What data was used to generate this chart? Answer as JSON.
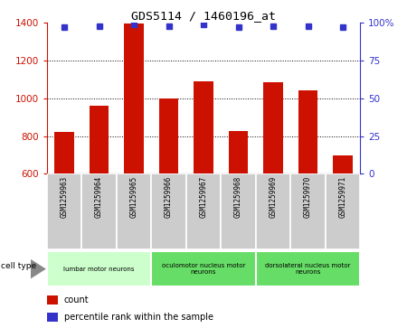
{
  "title": "GDS5114 / 1460196_at",
  "samples": [
    "GSM1259963",
    "GSM1259964",
    "GSM1259965",
    "GSM1259966",
    "GSM1259967",
    "GSM1259968",
    "GSM1259969",
    "GSM1259970",
    "GSM1259971"
  ],
  "bar_values": [
    820,
    960,
    1395,
    1000,
    1090,
    825,
    1085,
    1045,
    700
  ],
  "percentile_values": [
    97,
    98,
    99,
    98,
    99,
    97,
    98,
    98,
    97
  ],
  "bar_color": "#cc1100",
  "dot_color": "#3333cc",
  "ylim_left": [
    600,
    1400
  ],
  "ylim_right": [
    0,
    100
  ],
  "yticks_left": [
    600,
    800,
    1000,
    1200,
    1400
  ],
  "yticks_right": [
    0,
    25,
    50,
    75,
    100
  ],
  "ytick_labels_right": [
    "0",
    "25",
    "50",
    "75",
    "100%"
  ],
  "grid_lines": [
    800,
    1000,
    1200
  ],
  "cell_type_groups": [
    {
      "label": "lumbar motor neurons",
      "start": 0,
      "end": 3
    },
    {
      "label": "oculomotor nucleus motor\nneurons",
      "start": 3,
      "end": 6
    },
    {
      "label": "dorsolateral nucleus motor\nneurons",
      "start": 6,
      "end": 9
    }
  ],
  "cell_type_label": "cell type",
  "legend_count_label": "count",
  "legend_percentile_label": "percentile rank within the sample",
  "group1_color": "#ccffcc",
  "group2_color": "#66dd66",
  "group3_color": "#66dd66",
  "sample_box_color": "#cccccc",
  "sample_box_edge": "#ffffff"
}
